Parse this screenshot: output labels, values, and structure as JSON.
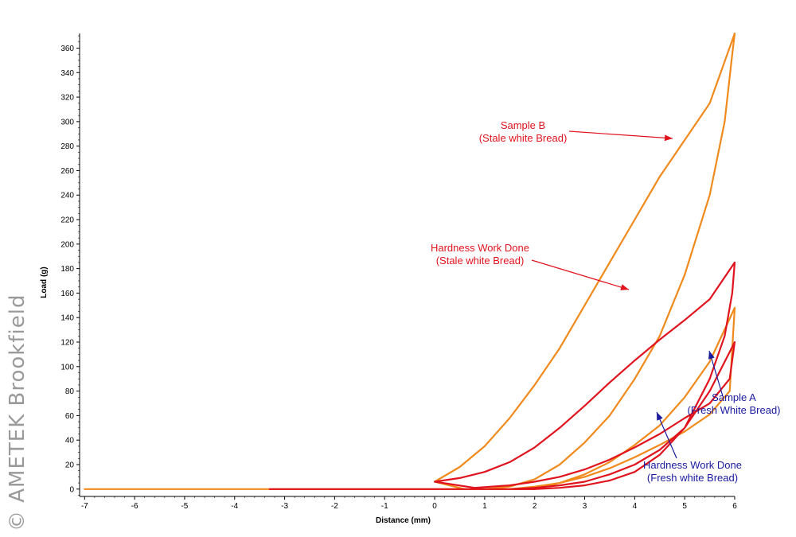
{
  "watermark": "© AMETEK Brookfield",
  "chart_data": {
    "type": "line",
    "xlabel": "Distance (mm)",
    "ylabel": "Load (g)",
    "xlim": [
      -7.1,
      6.0
    ],
    "ylim": [
      -6,
      372
    ],
    "x_ticks": [
      -7,
      -6,
      -5,
      -4,
      -3,
      -2,
      -1,
      0,
      1,
      2,
      3,
      4,
      5,
      6
    ],
    "y_ticks": [
      0,
      20,
      40,
      60,
      80,
      100,
      120,
      140,
      160,
      180,
      200,
      220,
      240,
      260,
      280,
      300,
      320,
      340,
      360
    ],
    "grid": false,
    "colors": {
      "sample_b": "#f08a1c",
      "sample_a": "#e0141e",
      "annotation_red": "#e0141e",
      "annotation_blue": "#1a1aa0"
    },
    "series": [
      {
        "color_key": "sample_b",
        "x": [
          -7.0,
          -3.0,
          0.0,
          0.5,
          1.0,
          1.5,
          2.0,
          2.5,
          3.0,
          3.5,
          4.0,
          4.5,
          5.0,
          5.5,
          6.0,
          5.9,
          5.5,
          5.0,
          4.5,
          4.0,
          3.5,
          3.0,
          2.5,
          2.0,
          1.5,
          1.0,
          0.6,
          0.0,
          0.5,
          1.0,
          1.5,
          2.0,
          2.5,
          3.0,
          3.5,
          4.0,
          4.5,
          5.0,
          5.5,
          6.0,
          5.95,
          5.8,
          5.5,
          5.0,
          4.5,
          4.0,
          3.5,
          3.0,
          2.5,
          2.0,
          1.5,
          1.0
        ],
        "y": [
          0,
          0,
          0,
          0,
          0,
          0,
          0,
          5,
          12,
          22,
          36,
          52,
          75,
          104,
          148,
          80,
          61,
          47,
          36,
          26,
          17,
          10,
          5,
          2,
          0,
          0,
          0,
          6,
          18,
          35,
          58,
          85,
          115,
          150,
          185,
          220,
          255,
          285,
          315,
          372,
          355,
          300,
          240,
          175,
          125,
          90,
          60,
          38,
          20,
          8,
          2,
          0
        ]
      },
      {
        "color_key": "sample_a",
        "x": [
          -3.3,
          -2.0,
          -1.0,
          0.0,
          0.5,
          1.0,
          1.5,
          2.0,
          2.5,
          3.0,
          3.5,
          4.0,
          4.5,
          5.0,
          5.5,
          6.0,
          5.9,
          5.5,
          5.0,
          4.5,
          4.0,
          3.5,
          3.0,
          2.5,
          2.0,
          1.5,
          0.8,
          0.0,
          0.5,
          1.0,
          1.5,
          2.0,
          2.5,
          3.0,
          3.5,
          4.0,
          4.5,
          5.0,
          5.5,
          6.0,
          5.95,
          5.8,
          5.5,
          5.0,
          4.5,
          4.0,
          3.5,
          3.0,
          2.5,
          2.0,
          1.5
        ],
        "y": [
          0,
          0,
          0,
          0,
          0,
          0,
          0,
          1,
          3,
          6,
          12,
          20,
          32,
          50,
          80,
          120,
          90,
          70,
          58,
          45,
          34,
          24,
          16,
          10,
          6,
          3,
          1,
          6,
          9,
          14,
          22,
          34,
          50,
          68,
          87,
          105,
          122,
          138,
          155,
          185,
          160,
          125,
          90,
          50,
          28,
          14,
          7,
          3,
          1,
          0,
          0
        ]
      }
    ],
    "annotations": [
      {
        "lines": [
          "Sample B",
          "(Stale white Bread)"
        ],
        "color_key": "annotation_red"
      },
      {
        "lines": [
          "Hardness Work Done",
          "(Stale white Bread)"
        ],
        "color_key": "annotation_red"
      },
      {
        "lines": [
          "Sample A",
          "(Fresh White Bread)"
        ],
        "color_key": "annotation_blue"
      },
      {
        "lines": [
          "Hardness Work Done",
          "(Fresh white Bread)"
        ],
        "color_key": "annotation_blue"
      }
    ]
  }
}
